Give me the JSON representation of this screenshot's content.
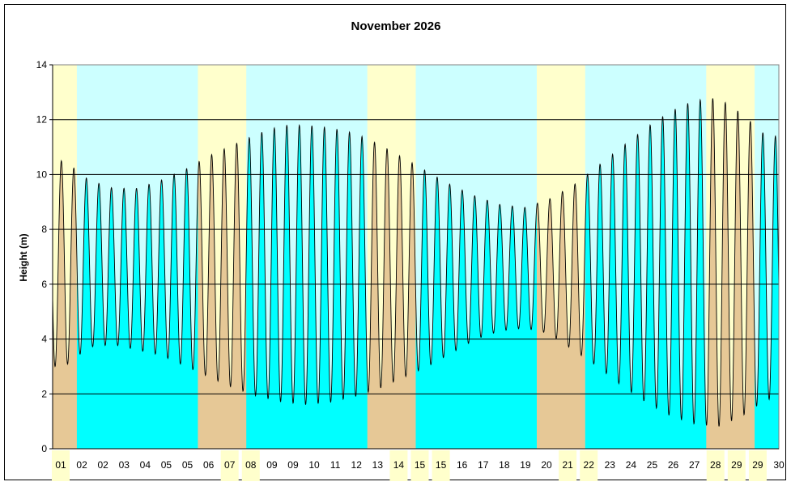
{
  "chart_data": {
    "type": "area",
    "title": "November 2026",
    "xlabel": "",
    "ylabel": "Height (m)",
    "ylim": [
      0,
      14
    ],
    "yticks": [
      0,
      2,
      4,
      6,
      8,
      10,
      12,
      14
    ],
    "grid": true,
    "legend": "none",
    "x_tick_labels": [
      "01",
      "02",
      "02",
      "03",
      "04",
      "05",
      "05",
      "06",
      "07",
      "08",
      "09",
      "09",
      "10",
      "11",
      "12",
      "13",
      "14",
      "15",
      "15",
      "16",
      "17",
      "18",
      "19",
      "20",
      "21",
      "22",
      "23",
      "24",
      "25",
      "26",
      "27",
      "28",
      "29",
      "29",
      "30"
    ],
    "weekend_ticks": [
      0,
      8,
      9,
      16,
      17,
      18,
      24,
      25,
      31,
      32,
      33
    ],
    "weekend_days": [
      1,
      7,
      8,
      14,
      15,
      21,
      22,
      28,
      29
    ],
    "days": 30,
    "highs": [
      10.5,
      9.8,
      9.5,
      9.5,
      9.8,
      10.2,
      10.7,
      11.1,
      11.5,
      11.8,
      11.8,
      11.7,
      11.5,
      11.1,
      10.6,
      10.1,
      9.6,
      9.2,
      8.9,
      8.8,
      9.1,
      9.6,
      10.3,
      11.0,
      11.7,
      12.3,
      12.7,
      12.8,
      12.2,
      11.4
    ],
    "lows": [
      3.0,
      3.7,
      3.8,
      3.6,
      3.4,
      3.0,
      2.6,
      2.2,
      1.9,
      1.7,
      1.6,
      1.7,
      1.9,
      2.2,
      2.6,
      3.0,
      3.5,
      4.0,
      4.3,
      4.4,
      4.2,
      3.6,
      3.0,
      2.3,
      1.7,
      1.2,
      0.9,
      0.8,
      1.2,
      1.8
    ],
    "colors": {
      "weekday_sky": "#ccffff",
      "weekend_sky": "#ffffcc",
      "weekday_water": "#00ffff",
      "weekend_water": "#e6c896",
      "line": "#000000"
    }
  }
}
